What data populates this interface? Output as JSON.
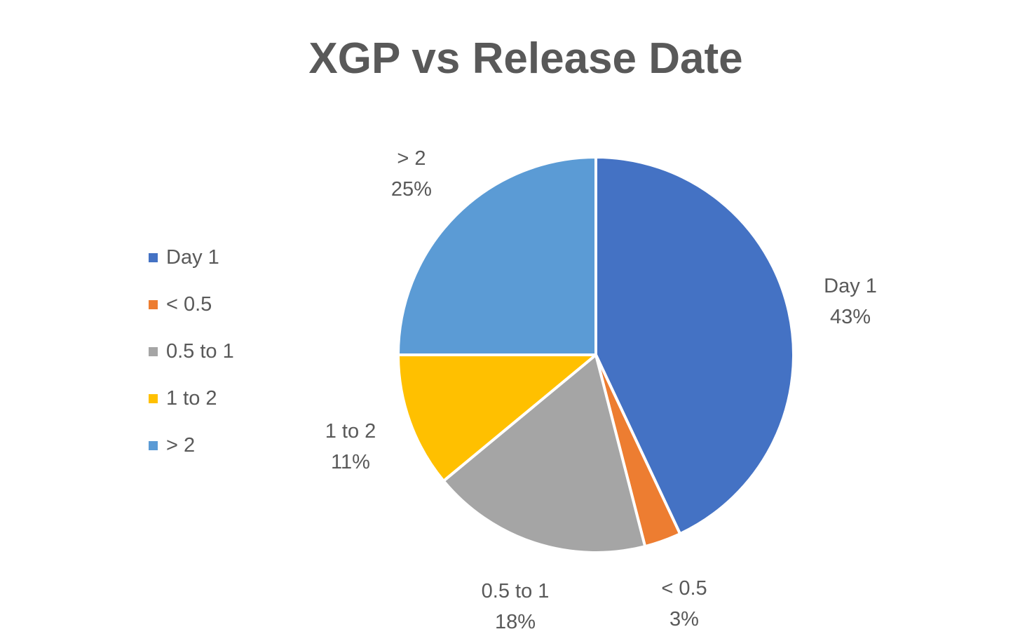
{
  "chart_data": {
    "type": "pie",
    "title": "XGP vs Release Date",
    "categories": [
      "Day 1",
      "< 0.5",
      "0.5 to 1",
      "1 to 2",
      "> 2"
    ],
    "values": [
      43,
      3,
      18,
      11,
      25
    ],
    "value_labels": [
      "43%",
      "3%",
      "18%",
      "11%",
      "25%"
    ],
    "colors": [
      "#4472C4",
      "#ED7D31",
      "#A5A5A5",
      "#FFC000",
      "#5B9BD5"
    ],
    "legend": "left",
    "data_labels": "outside, category name and percentage"
  }
}
